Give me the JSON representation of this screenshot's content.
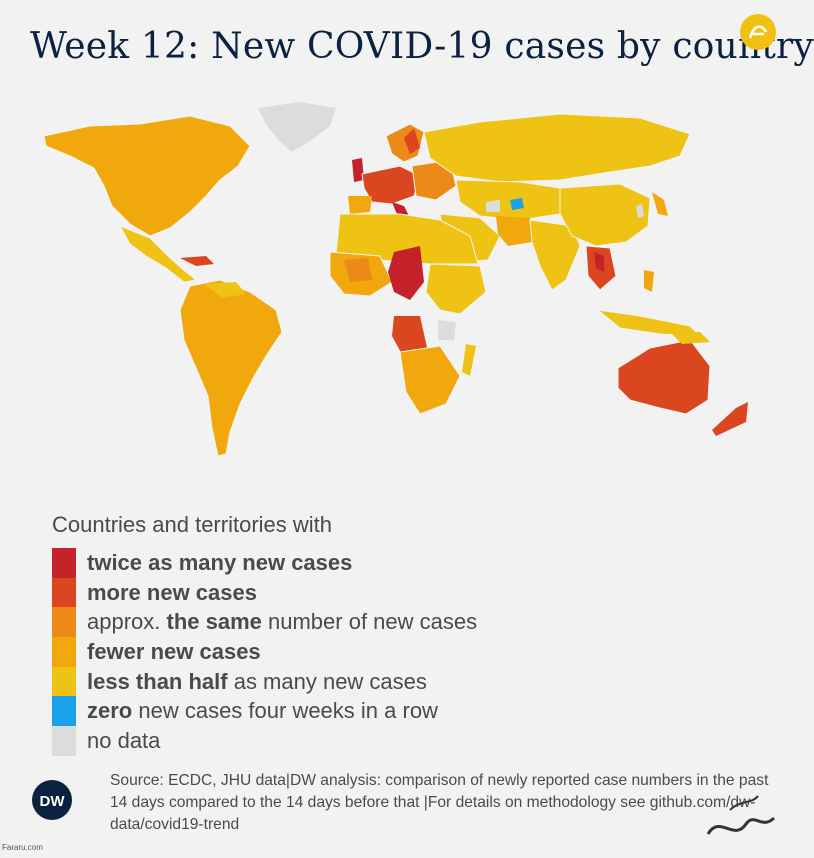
{
  "title": "Week 12: New COVID-19 cases by country",
  "legend": {
    "heading": "Countries and territories with",
    "items": [
      {
        "color": "#c4212b",
        "pre": "",
        "bold": "twice as many new cases",
        "post": ""
      },
      {
        "color": "#d9461f",
        "pre": "",
        "bold": "more new cases",
        "post": ""
      },
      {
        "color": "#ec8a17",
        "pre": "approx. ",
        "bold": "the same",
        "post": " number of new cases"
      },
      {
        "color": "#f1a80d",
        "pre": "",
        "bold": "fewer new cases",
        "post": ""
      },
      {
        "color": "#efc313",
        "pre": "",
        "bold": "less than half",
        "post": " as many new cases"
      },
      {
        "color": "#1aa3e8",
        "pre": "",
        "bold": "zero",
        "post": " new cases four weeks in a row"
      },
      {
        "color": "#dcdcdc",
        "pre": "",
        "bold": "",
        "post": "no data"
      }
    ]
  },
  "source": "Source: ECDC, JHU data|DW analysis: comparison of newly reported case numbers in the past 14 days compared to the 14 days before that |For details on methodology see github.com/dw-data/covid19-trend",
  "brand": "DW",
  "watermark_left": "Fararu.com",
  "colors": {
    "title": "#0a2240",
    "background": "#f2f2f2"
  }
}
